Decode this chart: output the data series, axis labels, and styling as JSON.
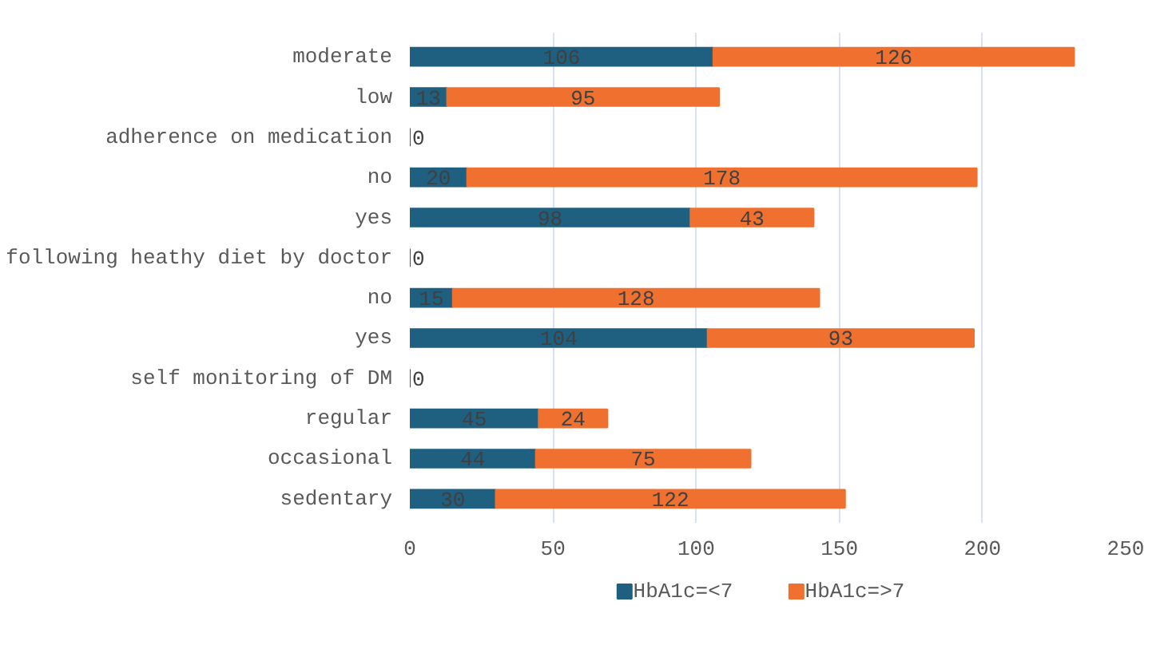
{
  "chart_data": {
    "type": "bar",
    "orientation": "horizontal",
    "stacked": true,
    "categories": [
      "moderate",
      "low",
      "adherence on medication",
      "no",
      "yes",
      "following heathy diet by doctor",
      "no",
      "yes",
      "self monitoring of DM",
      "regular",
      "occasional",
      "sedentary"
    ],
    "series": [
      {
        "name": "HbA1c=<7",
        "color": "#1f5f80",
        "values": [
          106,
          13,
          0,
          20,
          98,
          0,
          15,
          104,
          0,
          45,
          44,
          30
        ]
      },
      {
        "name": "HbA1c=>7",
        "color": "#f07030",
        "values": [
          126,
          95,
          null,
          178,
          43,
          null,
          128,
          93,
          null,
          24,
          75,
          122
        ]
      }
    ],
    "xlim": [
      0,
      250
    ],
    "xticks": [
      0,
      50,
      100,
      150,
      200,
      250
    ],
    "grid": "x",
    "legend": "bottom",
    "data_labels": true
  }
}
